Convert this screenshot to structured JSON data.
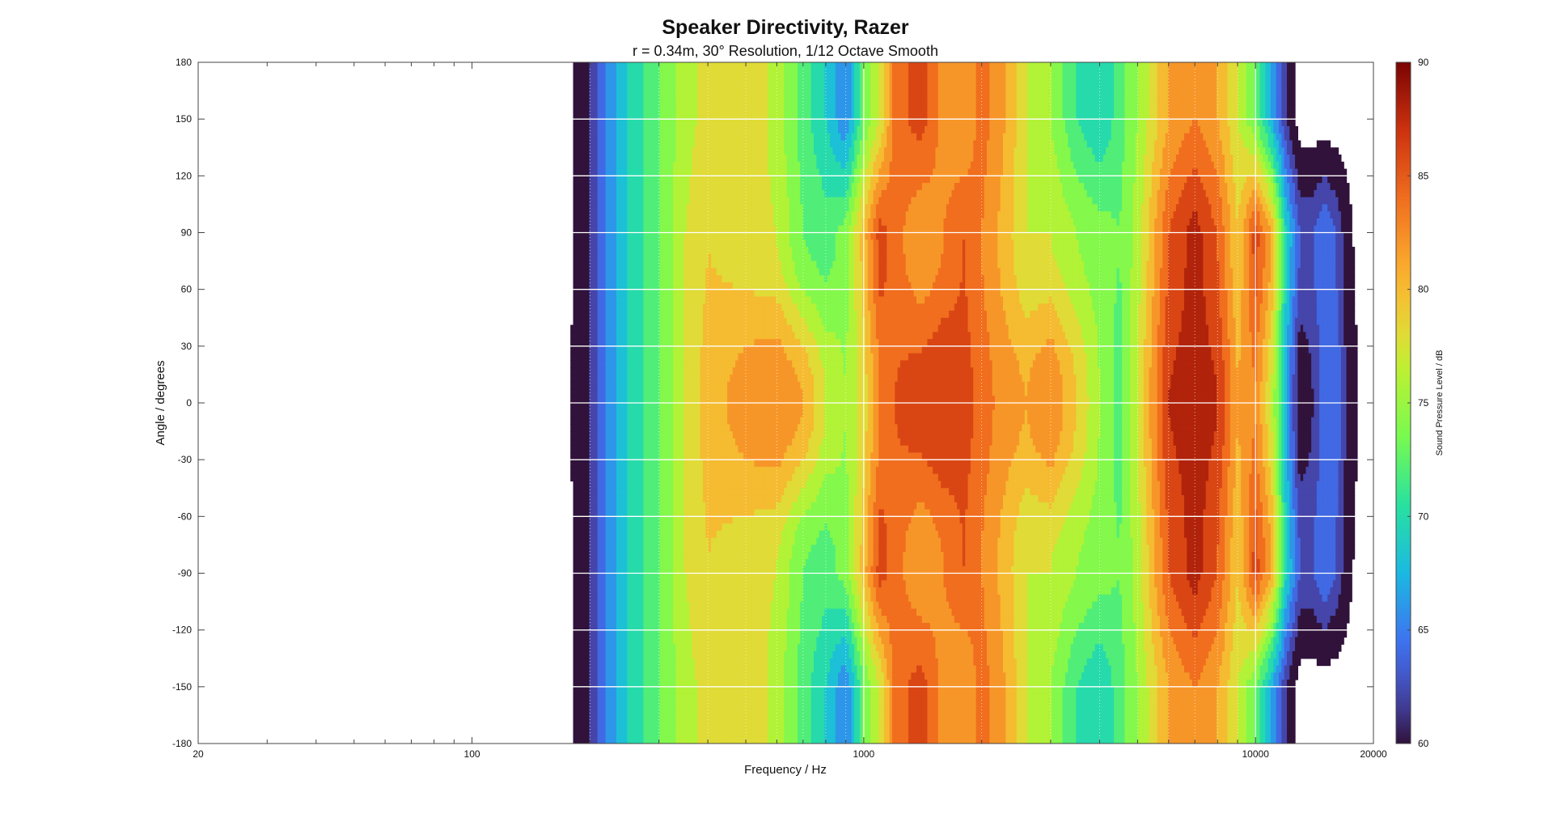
{
  "chart_data": {
    "type": "heatmap",
    "subtype": "contour",
    "title": "Speaker Directivity, Razer",
    "subtitle": "r = 0.34m, 30° Resolution, 1/12 Octave Smooth",
    "xlabel": "Frequency / Hz",
    "ylabel": "Angle / degrees",
    "x_scale": "log",
    "xlim": [
      20,
      20000
    ],
    "ylim": [
      -180,
      180
    ],
    "x_tick_labels": [
      {
        "value": 20,
        "label": "20"
      },
      {
        "value": 100,
        "label": "100"
      },
      {
        "value": 1000,
        "label": "1000"
      },
      {
        "value": 10000,
        "label": "10000"
      },
      {
        "value": 20000,
        "label": "20000"
      }
    ],
    "x_minor_ticks": [
      30,
      40,
      50,
      60,
      70,
      80,
      90,
      200,
      300,
      400,
      500,
      600,
      700,
      800,
      900,
      2000,
      3000,
      4000,
      5000,
      6000,
      7000,
      8000,
      9000
    ],
    "y_ticks": [
      180,
      150,
      120,
      90,
      60,
      30,
      0,
      -30,
      -60,
      -90,
      -120,
      -150,
      -180
    ],
    "grid": true,
    "colorbar": {
      "label": "Sound Pressure Level / dB",
      "range": [
        60,
        90
      ],
      "ticks": [
        60,
        65,
        70,
        75,
        80,
        85,
        90
      ],
      "placement": "right",
      "colormap": "turbo"
    },
    "angles": [
      -180,
      -150,
      -120,
      -90,
      -60,
      -30,
      0,
      30,
      60,
      90,
      120,
      150,
      180
    ],
    "frequencies": [
      170,
      185,
      200,
      220,
      250,
      300,
      350,
      400,
      500,
      600,
      700,
      800,
      900,
      1000,
      1100,
      1200,
      1400,
      1600,
      1800,
      2000,
      2300,
      2600,
      3000,
      3500,
      4000,
      4500,
      5000,
      6000,
      7000,
      8000,
      9000,
      10000,
      11000,
      12000,
      13000,
      14000,
      15000,
      16000,
      17000,
      18000,
      19000,
      20000
    ],
    "spl_on_axis_db": [
      59,
      60,
      62,
      66,
      70,
      74,
      78,
      81,
      83,
      84,
      82,
      78,
      76,
      79,
      84,
      86,
      87,
      88,
      87,
      85,
      83,
      82,
      84,
      80,
      76,
      73,
      78,
      88,
      89,
      88,
      82,
      84,
      78,
      68,
      60,
      62,
      65,
      66,
      62,
      60,
      58,
      58
    ],
    "spl_side_90_db": [
      58,
      60,
      62,
      66,
      70,
      74,
      78,
      80,
      79,
      78,
      74,
      73,
      75,
      81,
      87,
      85,
      82,
      84,
      86,
      84,
      81,
      78,
      78,
      76,
      75,
      74,
      77,
      86,
      89,
      86,
      80,
      87,
      82,
      70,
      64,
      64,
      66,
      64,
      61,
      59,
      58,
      58
    ],
    "spl_rear_150_db": [
      58,
      60,
      62,
      66,
      70,
      74,
      77,
      79,
      80,
      77,
      73,
      70,
      66,
      74,
      78,
      85,
      87,
      83,
      82,
      85,
      82,
      78,
      76,
      72,
      70,
      73,
      76,
      82,
      84,
      82,
      78,
      74,
      68,
      62,
      58,
      58,
      58,
      58,
      58,
      58,
      58,
      58
    ]
  }
}
